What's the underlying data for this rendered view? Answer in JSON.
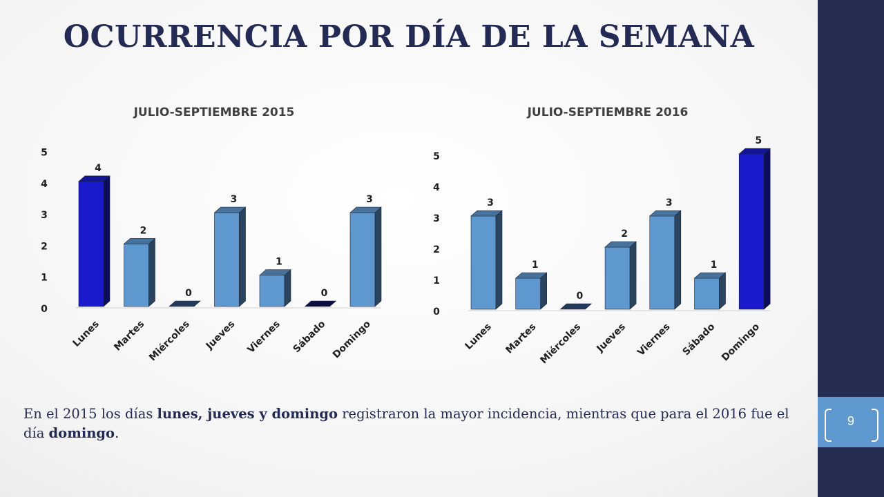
{
  "slide": {
    "title": "OCURRENCIA POR DÍA DE LA SEMANA",
    "page_number": "9",
    "caption": {
      "p1": "En el 2015 los días ",
      "b1": "lunes, jueves y domingo",
      "p2": " registraron la mayor incidencia, mientras que para el 2016 fue el día ",
      "b2": "domingo",
      "p3": "."
    }
  },
  "colors": {
    "title": "#232b55",
    "sidebar": "#262d52",
    "page_band": "#5f98ce",
    "max_bar": "#1a1acc",
    "other_bar": "#5f98ce",
    "zero_bar_2015_sabado": "#0d0d40",
    "zero_bar_other": "#243a58"
  },
  "chart_data": [
    {
      "type": "bar",
      "title": "JULIO-SEPTIEMBRE 2015",
      "categories": [
        "Lunes",
        "Martes",
        "Miércoles",
        "Jueves",
        "Viernes",
        "Sábado",
        "Domingo"
      ],
      "values": [
        4,
        2,
        0,
        3,
        1,
        0,
        3
      ],
      "data_labels": [
        "4",
        "2",
        "0",
        "3",
        "1",
        "0",
        "3"
      ],
      "ylim": [
        0,
        5
      ],
      "yticks": [
        "0",
        "1",
        "2",
        "3",
        "4",
        "5"
      ],
      "grid": false,
      "legend": "none",
      "style": "3d-column"
    },
    {
      "type": "bar",
      "title": "JULIO-SEPTIEMBRE 2016",
      "categories": [
        "Lunes",
        "Martes",
        "Miércoles",
        "Jueves",
        "Viernes",
        "Sábado",
        "Domingo"
      ],
      "values": [
        3,
        1,
        0,
        2,
        3,
        1,
        5
      ],
      "data_labels": [
        "3",
        "1",
        "0",
        "2",
        "3",
        "1",
        "5"
      ],
      "ylim": [
        0,
        5
      ],
      "yticks": [
        "0",
        "1",
        "2",
        "3",
        "4",
        "5"
      ],
      "grid": false,
      "legend": "none",
      "style": "3d-column"
    }
  ]
}
